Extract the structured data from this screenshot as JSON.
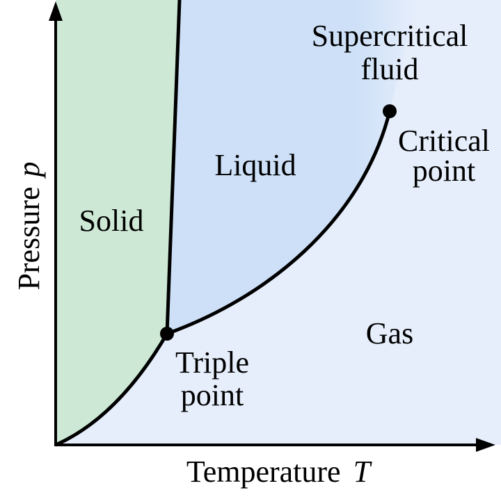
{
  "axes": {
    "x_label": {
      "text": "Temperature",
      "symbol": "T"
    },
    "y_label": {
      "text": "Pressure",
      "symbol": "p"
    }
  },
  "regions": {
    "solid": "Solid",
    "liquid": "Liquid",
    "gas": "Gas",
    "supercritical": [
      "Supercritical",
      "fluid"
    ]
  },
  "points": {
    "critical": [
      "Critical",
      "point"
    ],
    "triple": [
      "Triple",
      "point"
    ]
  }
}
